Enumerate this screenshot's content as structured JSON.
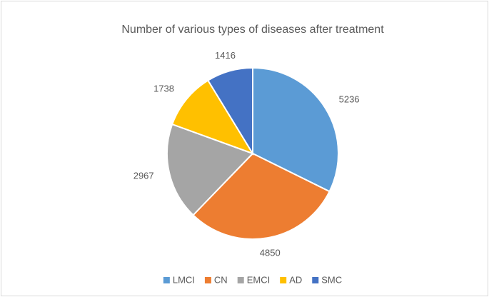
{
  "chart_data": {
    "type": "pie",
    "title": "Number of various types of diseases after treatment",
    "categories": [
      "LMCI",
      "CN",
      "EMCI",
      "AD",
      "SMC"
    ],
    "values": [
      5236,
      4850,
      2967,
      1738,
      1416
    ],
    "colors": [
      "#5b9bd5",
      "#ed7d31",
      "#a5a5a5",
      "#ffc000",
      "#4472c4"
    ],
    "legend": "bottom"
  }
}
